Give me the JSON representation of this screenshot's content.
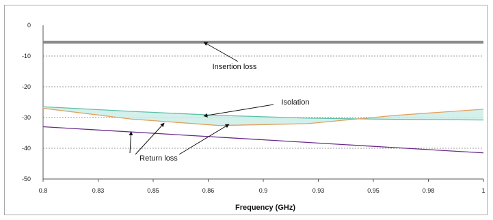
{
  "chart_data": {
    "type": "line",
    "title": "",
    "xlabel": "Frequency (GHz)",
    "ylabel": "",
    "xlim": [
      0.8,
      1.0
    ],
    "ylim": [
      -50,
      0
    ],
    "x_ticks": [
      "0.8",
      "0.82",
      "0.84",
      "0.86",
      "0.88",
      "0.9",
      "0.92",
      "0.94",
      "0.96",
      "0.98",
      "1"
    ],
    "x_ticks_drawn": [
      "0.8",
      "0.83",
      "0.85",
      "0.86",
      "0.9",
      "0.93",
      "0.95",
      "0.98",
      "1"
    ],
    "y_ticks": [
      "0",
      "-10",
      "-20",
      "-30",
      "-40",
      "-50"
    ],
    "grid": "horizontal dotted",
    "legend": "none",
    "series": [
      {
        "key": "insertion",
        "color": "#8c8c8c",
        "x": [
          0.8,
          1.0
        ],
        "y": [
          -5.5,
          -5.5
        ]
      },
      {
        "key": "isolation_upper",
        "color": "#5fbfa8",
        "x": [
          0.8,
          0.84,
          0.88,
          0.92,
          0.96,
          1.0
        ],
        "y": [
          -26.5,
          -28.0,
          -29.3,
          -30.2,
          -30.6,
          -30.8
        ]
      },
      {
        "key": "isolation_lower",
        "color": "#e0a060",
        "x": [
          0.8,
          0.84,
          0.88,
          0.92,
          0.96,
          1.0
        ],
        "y": [
          -27.0,
          -30.5,
          -32.6,
          -32.0,
          -29.3,
          -27.3
        ]
      },
      {
        "key": "return_loss",
        "color": "#6a2a8a",
        "x": [
          0.8,
          1.0
        ],
        "y": [
          -33.0,
          -41.5
        ]
      }
    ],
    "isolation_band_color": "#c8ece6",
    "annotations": [
      {
        "text": "Insertion loss",
        "arrow_to": [
          0.873,
          -5.5
        ]
      },
      {
        "text": "Isolation",
        "arrow_to": [
          0.873,
          -29.5
        ]
      },
      {
        "text": "Return loss",
        "arrow_to": [
          0.855,
          -31.8
        ]
      }
    ]
  }
}
